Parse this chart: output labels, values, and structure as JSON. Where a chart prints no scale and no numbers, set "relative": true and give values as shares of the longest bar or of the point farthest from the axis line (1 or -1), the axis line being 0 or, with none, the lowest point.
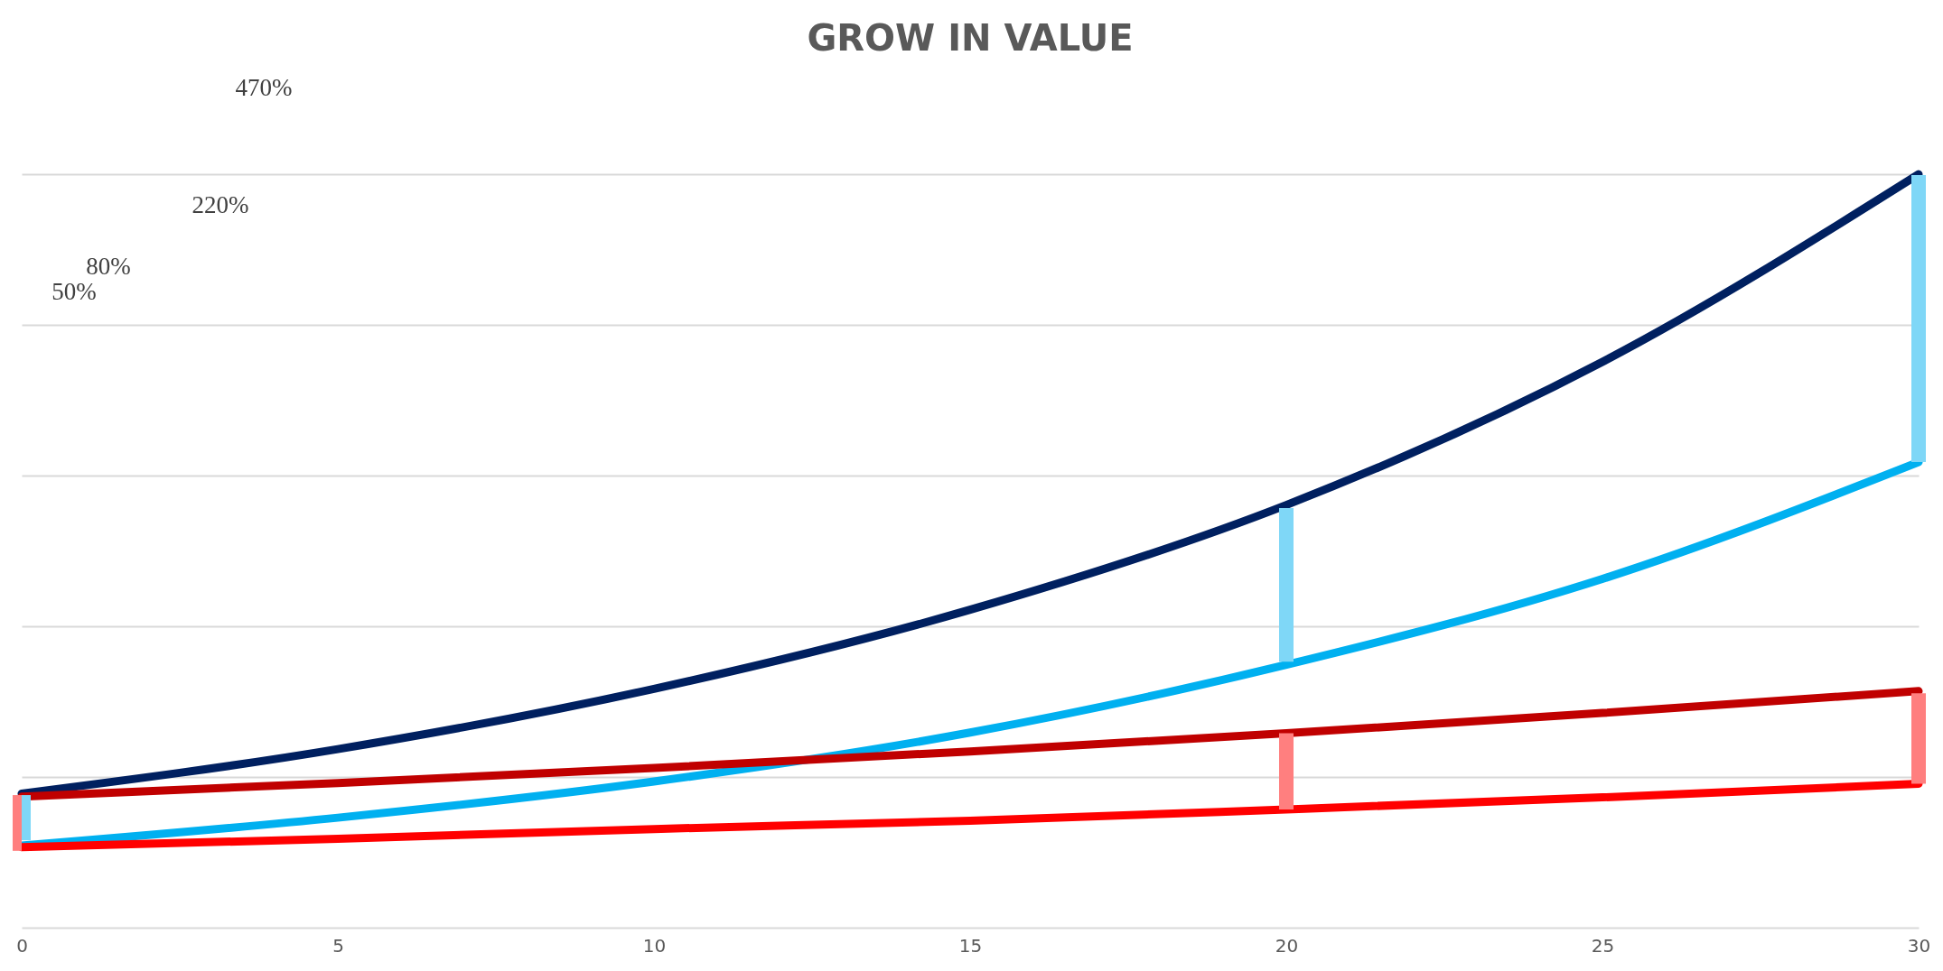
{
  "chart_data": {
    "type": "line",
    "title": "GROW IN VALUE",
    "relative": true,
    "x": [
      0,
      5,
      10,
      15,
      20,
      25,
      30
    ],
    "xlim": [
      0,
      30
    ],
    "xticks": [
      0,
      5,
      10,
      15,
      20,
      25,
      30
    ],
    "grid": "y",
    "annotations": [
      "470%",
      "220%",
      "80%",
      "50%"
    ],
    "series": [
      {
        "color": "#002060",
        "values": [
          0.178,
          0.237,
          0.317,
          0.422,
          0.561,
          0.751,
          1
        ]
      },
      {
        "color": "#00b0f0",
        "values": [
          0.109,
          0.146,
          0.194,
          0.259,
          0.349,
          0.463,
          0.618
        ]
      },
      {
        "color": "#c00000",
        "values": [
          0.174,
          0.192,
          0.212,
          0.234,
          0.258,
          0.285,
          0.314
        ]
      },
      {
        "color": "#ff0000",
        "values": [
          0.107,
          0.118,
          0.131,
          0.142,
          0.157,
          0.173,
          0.191
        ]
      },
      {
        "color": "#7fd7f7",
        "x": [
          0,
          0
        ],
        "values": [
          0.116,
          0.176
        ]
      },
      {
        "color": "#7fd7f7",
        "x": [
          20,
          20
        ],
        "values": [
          0.353,
          0.557
        ]
      },
      {
        "color": "#7fd7f7",
        "x": [
          30,
          30
        ],
        "values": [
          0.618,
          0.999
        ]
      },
      {
        "color": "#ff7f7f",
        "x": [
          0,
          0
        ],
        "values": [
          0.102,
          0.176
        ]
      },
      {
        "color": "#ff7f7f",
        "x": [
          20,
          20
        ],
        "values": [
          0.157,
          0.258
        ]
      },
      {
        "color": "#ff7f7f",
        "x": [
          30,
          30
        ],
        "values": [
          0.191,
          0.311
        ]
      }
    ]
  }
}
